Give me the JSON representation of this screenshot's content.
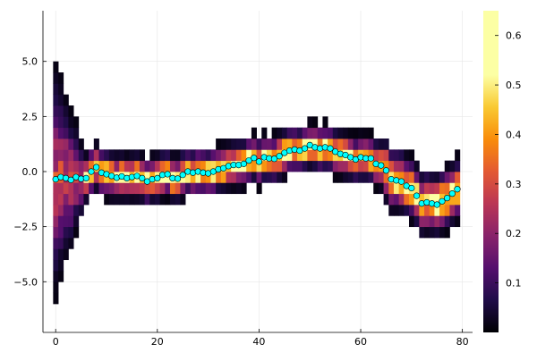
{
  "chart_data": {
    "type": "heatmap",
    "title": "",
    "xlabel": "",
    "ylabel": "",
    "xlim": [
      -2.5,
      82
    ],
    "ylim": [
      -7.3,
      7.3
    ],
    "grid": true,
    "legend": "none",
    "x_ticks": [
      0,
      20,
      40,
      60,
      80
    ],
    "x_tick_labels": [
      "0",
      "20",
      "40",
      "60",
      "80"
    ],
    "y_ticks": [
      5.0,
      2.5,
      0.0,
      -2.5,
      -5.0
    ],
    "y_tick_labels": [
      "5.0",
      "2.5",
      "0.0",
      "−2.5",
      "−5.0"
    ],
    "heatmap": {
      "x_bin_width": 1,
      "y_bin_height": 0.5,
      "y_bin_min": -6.0,
      "y_bin_max": 5.5,
      "colormap": "inferno"
    },
    "colorbar": {
      "range": [
        0,
        0.65
      ],
      "ticks": [
        0.1,
        0.2,
        0.3,
        0.4,
        0.5,
        0.6
      ],
      "tick_labels": [
        "0.1",
        "0.2",
        "0.3",
        "0.4",
        "0.5",
        "0.6"
      ]
    },
    "markers": {
      "color": "#00ffff",
      "x": [
        0,
        1,
        2,
        3,
        4,
        5,
        6,
        7,
        8,
        9,
        10,
        11,
        12,
        13,
        14,
        15,
        16,
        17,
        18,
        19,
        20,
        21,
        22,
        23,
        24,
        25,
        26,
        27,
        28,
        29,
        30,
        31,
        32,
        33,
        34,
        35,
        36,
        37,
        38,
        39,
        40,
        41,
        42,
        43,
        44,
        45,
        46,
        47,
        48,
        49,
        50,
        51,
        52,
        53,
        54,
        55,
        56,
        57,
        58,
        59,
        60,
        61,
        62,
        63,
        64,
        65,
        66,
        67,
        68,
        69,
        70,
        71,
        72,
        73,
        74,
        75,
        76,
        77,
        78,
        79
      ],
      "y": [
        -0.35,
        -0.25,
        -0.3,
        -0.38,
        -0.25,
        -0.33,
        -0.3,
        0.0,
        0.2,
        -0.05,
        -0.12,
        -0.2,
        -0.28,
        -0.22,
        -0.3,
        -0.25,
        -0.2,
        -0.3,
        -0.45,
        -0.35,
        -0.3,
        -0.15,
        -0.12,
        -0.3,
        -0.32,
        -0.15,
        0.0,
        -0.05,
        0.0,
        -0.05,
        -0.08,
        0.0,
        0.1,
        0.15,
        0.25,
        0.3,
        0.3,
        0.35,
        0.5,
        0.62,
        0.45,
        0.65,
        0.6,
        0.58,
        0.7,
        0.85,
        0.95,
        1.0,
        0.95,
        1.05,
        1.2,
        1.1,
        1.05,
        1.1,
        1.05,
        0.9,
        0.8,
        0.75,
        0.65,
        0.55,
        0.65,
        0.6,
        0.6,
        0.35,
        0.28,
        0.05,
        -0.35,
        -0.4,
        -0.45,
        -0.65,
        -0.75,
        -1.1,
        -1.45,
        -1.4,
        -1.45,
        -1.5,
        -1.35,
        -1.2,
        -1.0,
        -0.8
      ]
    }
  }
}
